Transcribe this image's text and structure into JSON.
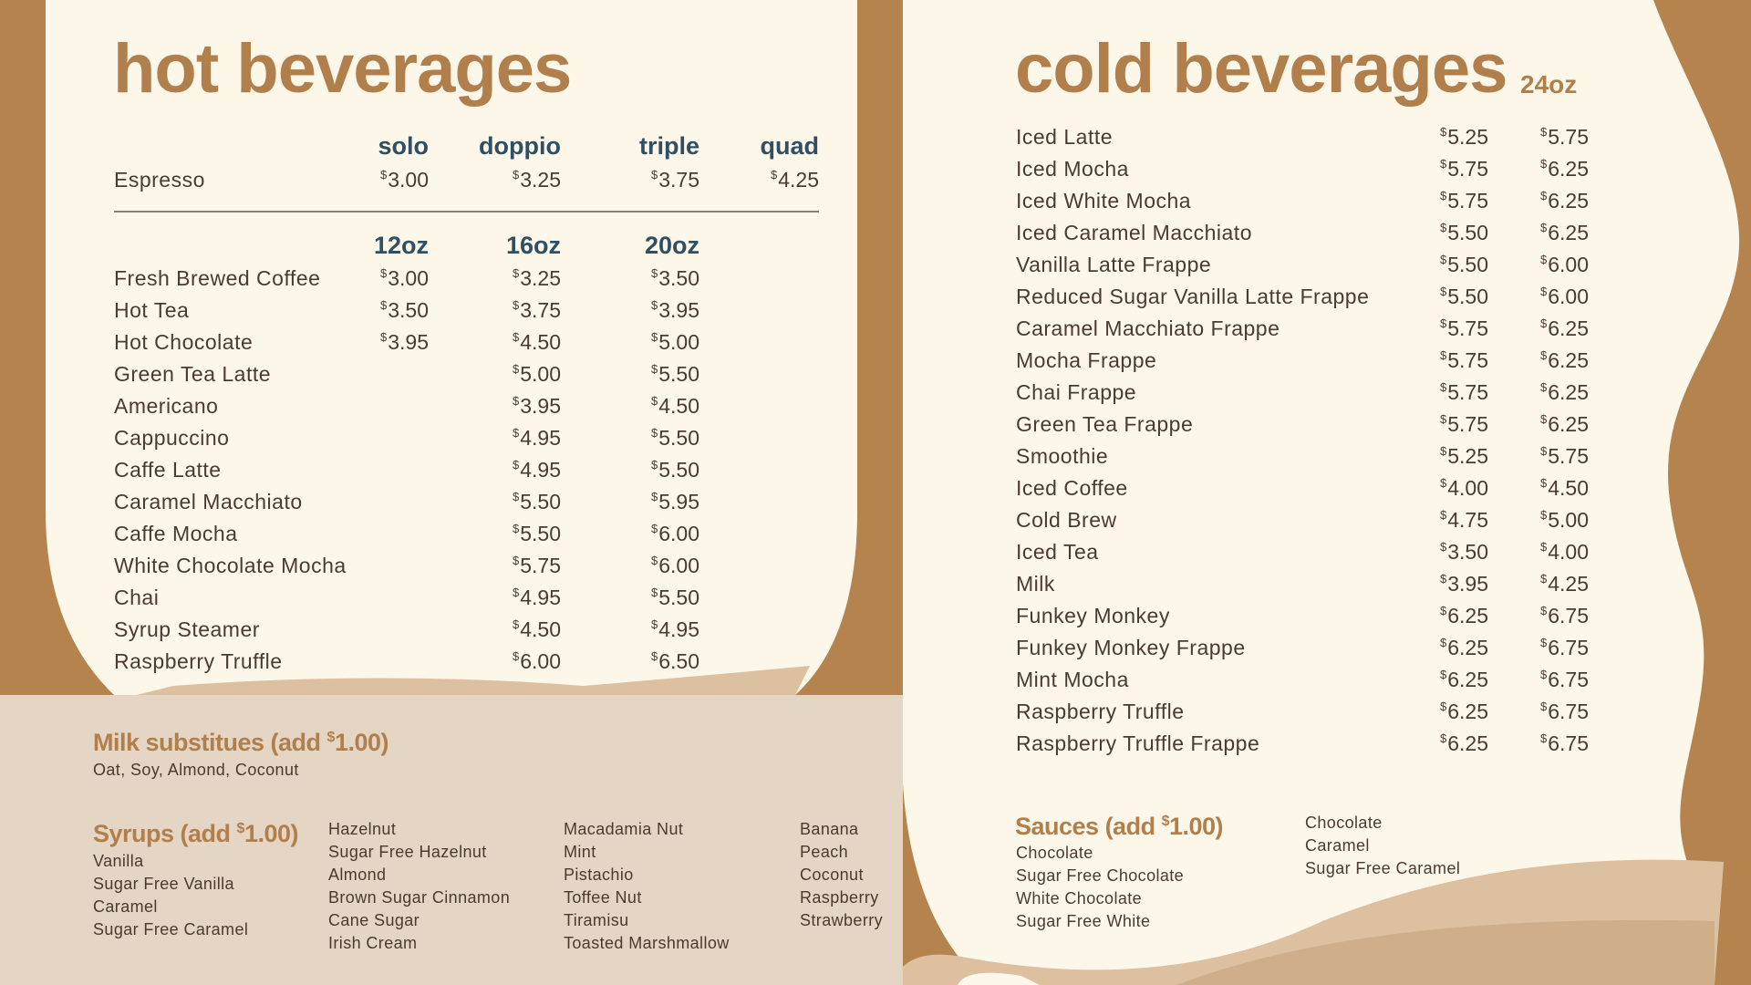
{
  "currency": "$",
  "colors": {
    "brown": "#b4834e",
    "cream": "#fdf7ea",
    "beige": "#e5d5c4",
    "accent": "#b17f4b",
    "header": "#2f5062",
    "text": "#4b3b2f"
  },
  "hot": {
    "title": "hot beverages",
    "espresso_headers": [
      "solo",
      "doppio",
      "triple",
      "quad"
    ],
    "espresso": {
      "name": "Espresso",
      "prices": [
        "3.00",
        "3.25",
        "3.75",
        "4.25"
      ]
    },
    "size_headers": [
      "12oz",
      "16oz",
      "20oz"
    ],
    "items": [
      {
        "name": "Fresh Brewed Coffee",
        "prices": [
          "3.00",
          "3.25",
          "3.50"
        ]
      },
      {
        "name": "Hot Tea",
        "prices": [
          "3.50",
          "3.75",
          "3.95"
        ]
      },
      {
        "name": "Hot Chocolate",
        "prices": [
          "3.95",
          "4.50",
          "5.00"
        ]
      },
      {
        "name": "Green Tea Latte",
        "prices": [
          "",
          "5.00",
          "5.50"
        ]
      },
      {
        "name": "Americano",
        "prices": [
          "",
          "3.95",
          "4.50"
        ]
      },
      {
        "name": "Cappuccino",
        "prices": [
          "",
          "4.95",
          "5.50"
        ]
      },
      {
        "name": "Caffe Latte",
        "prices": [
          "",
          "4.95",
          "5.50"
        ]
      },
      {
        "name": "Caramel Macchiato",
        "prices": [
          "",
          "5.50",
          "5.95"
        ]
      },
      {
        "name": "Caffe Mocha",
        "prices": [
          "",
          "5.50",
          "6.00"
        ]
      },
      {
        "name": "White Chocolate Mocha",
        "prices": [
          "",
          "5.75",
          "6.00"
        ]
      },
      {
        "name": "Chai",
        "prices": [
          "",
          "4.95",
          "5.50"
        ]
      },
      {
        "name": "Syrup Steamer",
        "prices": [
          "",
          "4.50",
          "4.95"
        ]
      },
      {
        "name": "Raspberry Truffle",
        "prices": [
          "",
          "6.00",
          "6.50"
        ]
      }
    ]
  },
  "cold": {
    "title": "cold beverages",
    "size": "24oz",
    "items": [
      {
        "name": "Iced Latte",
        "prices": [
          "5.25",
          "5.75"
        ]
      },
      {
        "name": "Iced Mocha",
        "prices": [
          "5.75",
          "6.25"
        ]
      },
      {
        "name": "Iced White Mocha",
        "prices": [
          "5.75",
          "6.25"
        ]
      },
      {
        "name": "Iced Caramel Macchiato",
        "prices": [
          "5.50",
          "6.25"
        ]
      },
      {
        "name": "Vanilla Latte Frappe",
        "prices": [
          "5.50",
          "6.00"
        ]
      },
      {
        "name": "Reduced Sugar Vanilla Latte Frappe",
        "prices": [
          "5.50",
          "6.00"
        ]
      },
      {
        "name": "Caramel Macchiato Frappe",
        "prices": [
          "5.75",
          "6.25"
        ]
      },
      {
        "name": "Mocha Frappe",
        "prices": [
          "5.75",
          "6.25"
        ]
      },
      {
        "name": "Chai Frappe",
        "prices": [
          "5.75",
          "6.25"
        ]
      },
      {
        "name": "Green Tea Frappe",
        "prices": [
          "5.75",
          "6.25"
        ]
      },
      {
        "name": "Smoothie",
        "prices": [
          "5.25",
          "5.75"
        ]
      },
      {
        "name": "Iced Coffee",
        "prices": [
          "4.00",
          "4.50"
        ]
      },
      {
        "name": "Cold Brew",
        "prices": [
          "4.75",
          "5.00"
        ]
      },
      {
        "name": "Iced Tea",
        "prices": [
          "3.50",
          "4.00"
        ]
      },
      {
        "name": "Milk",
        "prices": [
          "3.95",
          "4.25"
        ]
      },
      {
        "name": "Funkey Monkey",
        "prices": [
          "6.25",
          "6.75"
        ]
      },
      {
        "name": "Funkey Monkey Frappe",
        "prices": [
          "6.25",
          "6.75"
        ]
      },
      {
        "name": "Mint Mocha",
        "prices": [
          "6.25",
          "6.75"
        ]
      },
      {
        "name": "Raspberry Truffle",
        "prices": [
          "6.25",
          "6.75"
        ]
      },
      {
        "name": "Raspberry Truffle Frappe",
        "prices": [
          "6.25",
          "6.75"
        ]
      }
    ]
  },
  "milk": {
    "heading": "Milk substitues (add ",
    "price": "1.00",
    "close": ")",
    "options": "Oat, Soy, Almond, Coconut"
  },
  "syrups": {
    "heading": "Syrups (add ",
    "price": "1.00",
    "close": ")",
    "columns": [
      [
        "Vanilla",
        "Sugar Free Vanilla",
        "Caramel",
        "Sugar Free Caramel"
      ],
      [
        "Hazelnut",
        "Sugar Free Hazelnut",
        "Almond",
        "Brown Sugar Cinnamon",
        "Cane Sugar",
        "Irish Cream"
      ],
      [
        "Macadamia Nut",
        "Mint",
        "Pistachio",
        "Toffee Nut",
        "Tiramisu",
        "Toasted Marshmallow"
      ],
      [
        "Banana",
        "Peach",
        "Coconut",
        "Raspberry",
        "Strawberry"
      ]
    ]
  },
  "sauces": {
    "heading": "Sauces (add ",
    "price": "1.00",
    "close": ")",
    "columns": [
      [
        "Chocolate",
        "Sugar Free Chocolate",
        "White Chocolate",
        "Sugar Free White"
      ],
      [
        "Chocolate",
        "Caramel",
        "Sugar Free Caramel"
      ]
    ]
  }
}
